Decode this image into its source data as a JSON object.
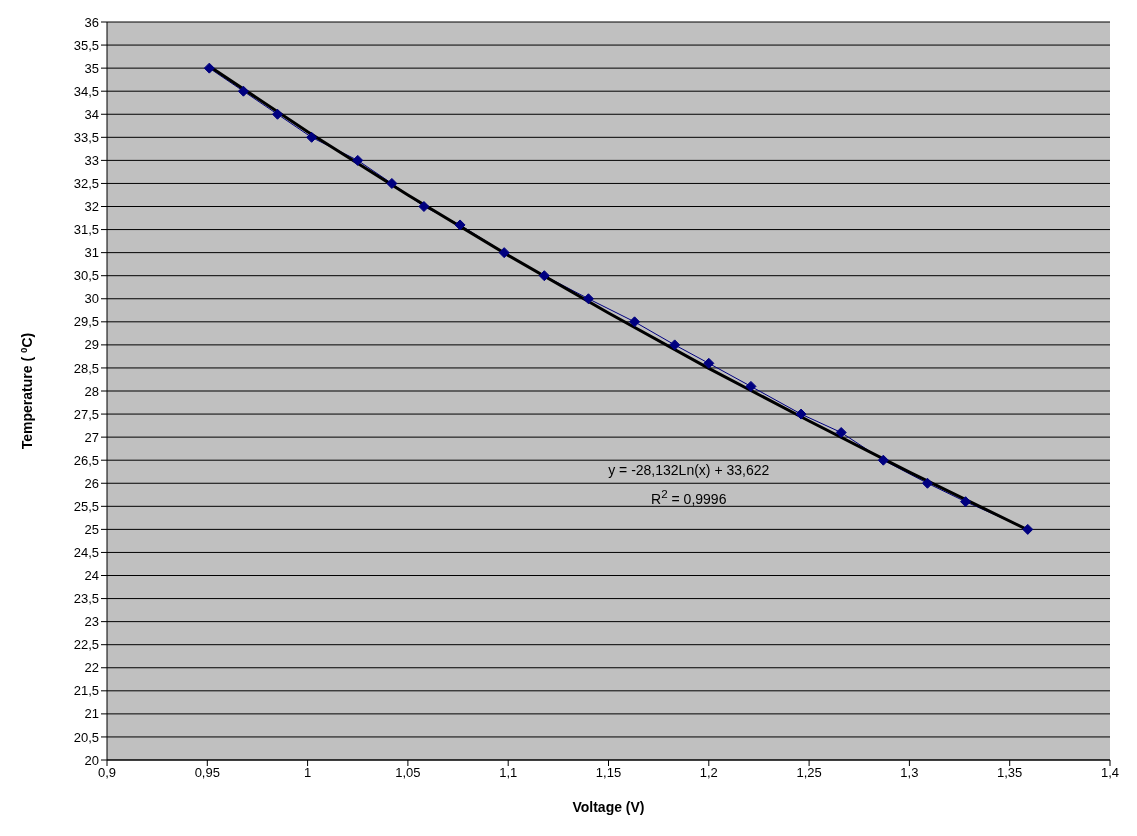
{
  "chart_data": {
    "type": "line",
    "xlabel": "Voltage (V)",
    "ylabel": "Temperature (  $^{0}$C)",
    "xlim": [
      0.9,
      1.4
    ],
    "xticks": [
      {
        "value": 0.9,
        "label": "0,9"
      },
      {
        "value": 0.95,
        "label": "0,95"
      },
      {
        "value": 1,
        "label": "1"
      },
      {
        "value": 1.05,
        "label": "1,05"
      },
      {
        "value": 1.1,
        "label": "1,1"
      },
      {
        "value": 1.15,
        "label": "1,15"
      },
      {
        "value": 1.2,
        "label": "1,2"
      },
      {
        "value": 1.25,
        "label": "1,25"
      },
      {
        "value": 1.3,
        "label": "1,3"
      },
      {
        "value": 1.35,
        "label": "1,35"
      },
      {
        "value": 1.4,
        "label": "1,4"
      }
    ],
    "ylim": [
      20,
      36
    ],
    "yticks": [
      20,
      {
        "value": 20.5,
        "label": "20,5"
      },
      21,
      {
        "value": 21.5,
        "label": "21,5"
      },
      22,
      {
        "value": 22.5,
        "label": "22,5"
      },
      23,
      {
        "value": 23.5,
        "label": "23,5"
      },
      24,
      {
        "value": 24.5,
        "label": "24,5"
      },
      25,
      {
        "value": 25.5,
        "label": "25,5"
      },
      26,
      {
        "value": 26.5,
        "label": "26,5"
      },
      27,
      {
        "value": 27.5,
        "label": "27,5"
      },
      28,
      {
        "value": 28.5,
        "label": "28,5"
      },
      29,
      {
        "value": 29.5,
        "label": "29,5"
      },
      30,
      {
        "value": 30.5,
        "label": "30,5"
      },
      31,
      {
        "value": 31.5,
        "label": "31,5"
      },
      32,
      {
        "value": 32.5,
        "label": "32,5"
      },
      33,
      {
        "value": 33.5,
        "label": "33,5"
      },
      34,
      {
        "value": 34.5,
        "label": "34,5"
      },
      35,
      {
        "value": 35.5,
        "label": "35,5"
      },
      36
    ],
    "grid": "y",
    "series": [
      {
        "color": "#000080",
        "marker": "diamond",
        "x": [
          0.951,
          0.968,
          0.985,
          1.002,
          1.025,
          1.042,
          1.058,
          1.076,
          1.098,
          1.118,
          1.14,
          1.163,
          1.183,
          1.2,
          1.221,
          1.246,
          1.266,
          1.287,
          1.309,
          1.328,
          1.359
        ],
        "values": [
          35,
          34.5,
          34,
          33.5,
          33,
          32.5,
          32,
          31.6,
          31,
          30.5,
          30,
          29.5,
          29,
          28.6,
          28.1,
          27.5,
          27.1,
          26.5,
          26,
          25.6,
          25
        ]
      },
      {
        "color": "#000000",
        "marker": "none",
        "x": [
          0.951,
          1,
          1.05,
          1.1,
          1.15,
          1.2,
          1.25,
          1.3,
          1.359
        ],
        "values": [
          35.04,
          33.62,
          32.25,
          30.94,
          29.69,
          28.49,
          27.35,
          26.24,
          24.99
        ]
      }
    ],
    "annotations": [
      "y = -28,132Ln(x) + 33,622",
      "R$^{2}$ = 0,9996"
    ]
  }
}
